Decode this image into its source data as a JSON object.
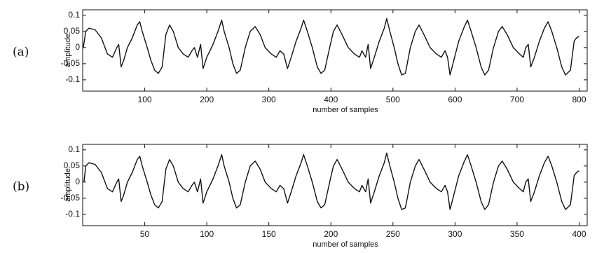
{
  "chart_data": [
    {
      "type": "line",
      "panel_label": "(a)",
      "xlabel": "number of samples",
      "ylabel": "amplitude",
      "xlim": [
        0,
        813
      ],
      "ylim": [
        -0.135,
        0.117
      ],
      "xticks": [
        100,
        200,
        300,
        400,
        500,
        600,
        700,
        800
      ],
      "yticks": [
        0.1,
        0.05,
        0,
        -0.05,
        -0.1
      ],
      "series": [
        {
          "name": null,
          "color": "#111111",
          "x": [
            1,
            5,
            10,
            20,
            30,
            40,
            48,
            55,
            58,
            62,
            66,
            72,
            80,
            88,
            92,
            96,
            104,
            110,
            116,
            122,
            128,
            134,
            140,
            146,
            154,
            162,
            170,
            176,
            180,
            185,
            190,
            194,
            200,
            210,
            218,
            224,
            228,
            236,
            242,
            248,
            254,
            262,
            270,
            278,
            286,
            294,
            304,
            312,
            318,
            324,
            330,
            336,
            344,
            352,
            356,
            362,
            370,
            378,
            384,
            390,
            398,
            404,
            410,
            418,
            428,
            438,
            446,
            450,
            456,
            460,
            464,
            470,
            478,
            486,
            490,
            495,
            502,
            508,
            514,
            520,
            528,
            536,
            542,
            550,
            560,
            570,
            578,
            584,
            588,
            592,
            598,
            606,
            614,
            620,
            626,
            634,
            642,
            648,
            654,
            662,
            670,
            676,
            684,
            694,
            704,
            710,
            714,
            718,
            722,
            728,
            736,
            744,
            750,
            756,
            764,
            772,
            778,
            786,
            792,
            796,
            800
          ],
          "values": [
            0.0,
            0.05,
            0.06,
            0.055,
            0.03,
            -0.02,
            -0.03,
            0.0,
            0.01,
            -0.06,
            -0.04,
            0.0,
            0.03,
            0.07,
            0.08,
            0.05,
            0.0,
            -0.04,
            -0.07,
            -0.08,
            -0.06,
            0.04,
            0.07,
            0.05,
            0.0,
            -0.02,
            -0.03,
            -0.01,
            0.0,
            -0.03,
            0.01,
            -0.065,
            -0.03,
            0.01,
            0.05,
            0.085,
            0.05,
            0.0,
            -0.05,
            -0.08,
            -0.07,
            0.0,
            0.05,
            0.065,
            0.04,
            0.0,
            -0.02,
            -0.03,
            -0.01,
            -0.02,
            -0.065,
            -0.03,
            0.02,
            0.06,
            0.085,
            0.05,
            0.0,
            -0.06,
            -0.08,
            -0.07,
            0.0,
            0.05,
            0.07,
            0.04,
            0.0,
            -0.02,
            -0.03,
            -0.01,
            -0.03,
            0.01,
            -0.065,
            -0.03,
            0.02,
            0.06,
            0.09,
            0.05,
            0.0,
            -0.05,
            -0.085,
            -0.08,
            0.0,
            0.05,
            0.07,
            0.04,
            0.0,
            -0.02,
            -0.03,
            -0.01,
            -0.03,
            -0.085,
            -0.04,
            0.02,
            0.06,
            0.085,
            0.05,
            0.0,
            -0.06,
            -0.085,
            -0.07,
            0.0,
            0.05,
            0.065,
            0.04,
            0.0,
            -0.02,
            -0.03,
            0.0,
            0.01,
            -0.06,
            -0.03,
            0.02,
            0.06,
            0.08,
            0.05,
            0.0,
            -0.06,
            -0.085,
            -0.07,
            0.02,
            0.03,
            0.035
          ]
        }
      ]
    },
    {
      "type": "line",
      "panel_label": "(b)",
      "xlabel": "number of samples",
      "ylabel": "amplitude",
      "xlim": [
        0,
        406.5
      ],
      "ylim": [
        -0.135,
        0.117
      ],
      "xticks": [
        50,
        100,
        150,
        200,
        250,
        300,
        350,
        400
      ],
      "yticks": [
        0.1,
        0.05,
        0,
        -0.05,
        -0.1
      ],
      "series": [
        {
          "name": null,
          "color": "#111111",
          "x": [
            1,
            2.5,
            5,
            10,
            15,
            20,
            24,
            27.5,
            29,
            31,
            33,
            36,
            40,
            44,
            46,
            48,
            52,
            55,
            58,
            61,
            64,
            67,
            70,
            73,
            77,
            81,
            85,
            88,
            90,
            92.5,
            95,
            97,
            100,
            105,
            109,
            112,
            114,
            118,
            121,
            124,
            127,
            131,
            135,
            139,
            143,
            147,
            152,
            156,
            159,
            162,
            165,
            168,
            172,
            176,
            178,
            181,
            185,
            189,
            192,
            195,
            199,
            202,
            205,
            209,
            214,
            219,
            223,
            225,
            228,
            230,
            232,
            235,
            239,
            243,
            245,
            247.5,
            251,
            254,
            257,
            260,
            264,
            268,
            271,
            275,
            280,
            285,
            289,
            292,
            294,
            296,
            299,
            303,
            307,
            310,
            313,
            317,
            321,
            324,
            327,
            331,
            335,
            338,
            342,
            347,
            352,
            355,
            357,
            359,
            361,
            364,
            368,
            372,
            375,
            378,
            382,
            386,
            389,
            393,
            396,
            398,
            400
          ],
          "values": [
            0.0,
            0.05,
            0.06,
            0.055,
            0.03,
            -0.02,
            -0.03,
            0.0,
            0.01,
            -0.06,
            -0.04,
            0.0,
            0.03,
            0.07,
            0.08,
            0.05,
            0.0,
            -0.04,
            -0.07,
            -0.08,
            -0.06,
            0.04,
            0.07,
            0.05,
            0.0,
            -0.02,
            -0.03,
            -0.01,
            0.0,
            -0.03,
            0.01,
            -0.065,
            -0.03,
            0.01,
            0.05,
            0.085,
            0.05,
            0.0,
            -0.05,
            -0.08,
            -0.07,
            0.0,
            0.05,
            0.065,
            0.04,
            0.0,
            -0.02,
            -0.03,
            -0.01,
            -0.02,
            -0.065,
            -0.03,
            0.02,
            0.06,
            0.085,
            0.05,
            0.0,
            -0.06,
            -0.08,
            -0.07,
            0.0,
            0.05,
            0.07,
            0.04,
            0.0,
            -0.02,
            -0.03,
            -0.01,
            -0.03,
            0.01,
            -0.065,
            -0.03,
            0.02,
            0.06,
            0.09,
            0.05,
            0.0,
            -0.05,
            -0.085,
            -0.08,
            0.0,
            0.05,
            0.07,
            0.04,
            0.0,
            -0.02,
            -0.03,
            -0.01,
            -0.03,
            -0.085,
            -0.04,
            0.02,
            0.06,
            0.085,
            0.05,
            0.0,
            -0.06,
            -0.085,
            -0.07,
            0.0,
            0.05,
            0.065,
            0.04,
            0.0,
            -0.02,
            -0.03,
            0.0,
            0.01,
            -0.06,
            -0.03,
            0.02,
            0.06,
            0.08,
            0.05,
            0.0,
            -0.06,
            -0.085,
            -0.07,
            0.02,
            0.03,
            0.035
          ]
        }
      ]
    }
  ]
}
